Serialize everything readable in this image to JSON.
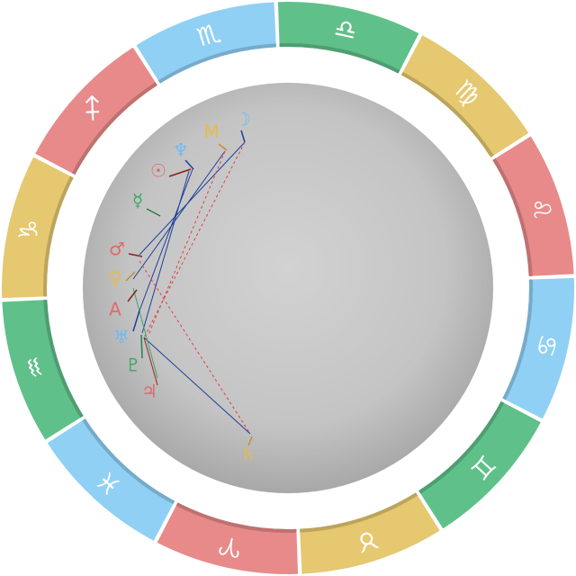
{
  "zodiac": [
    {
      "sign": "♎",
      "color": "#60c08a"
    },
    {
      "sign": "♍",
      "color": "#e5c870"
    },
    {
      "sign": "♌",
      "color": "#e88a8a"
    },
    {
      "sign": "♋",
      "color": "#90d0f5"
    },
    {
      "sign": "♊",
      "color": "#60c08a"
    },
    {
      "sign": "♉",
      "color": "#e5c870"
    },
    {
      "sign": "♈",
      "color": "#e88a8a"
    },
    {
      "sign": "♓",
      "color": "#90d0f5"
    },
    {
      "sign": "♒",
      "color": "#60c08a"
    },
    {
      "sign": "♑",
      "color": "#e5c870"
    },
    {
      "sign": "♐",
      "color": "#e88a8a"
    },
    {
      "sign": "♏",
      "color": "#90d0f5"
    }
  ],
  "planets": [
    {
      "glyph": "☽",
      "color": "#6cbcf0"
    },
    {
      "glyph": "M",
      "color": "#e6bb4d"
    },
    {
      "glyph": "♆",
      "color": "#6cbcf0"
    },
    {
      "glyph": "☉",
      "color": "#e06a6a"
    },
    {
      "glyph": "☿",
      "color": "#3aa864"
    },
    {
      "glyph": "♂",
      "color": "#e06a6a"
    },
    {
      "glyph": "♀",
      "color": "#e6bb4d"
    },
    {
      "glyph": "A",
      "color": "#e06a6a"
    },
    {
      "glyph": "♅",
      "color": "#6cbcf0"
    },
    {
      "glyph": "♇",
      "color": "#3aa864"
    },
    {
      "glyph": "♃",
      "color": "#e06a6a"
    },
    {
      "glyph": "♄",
      "color": "#e6bb4d"
    }
  ]
}
